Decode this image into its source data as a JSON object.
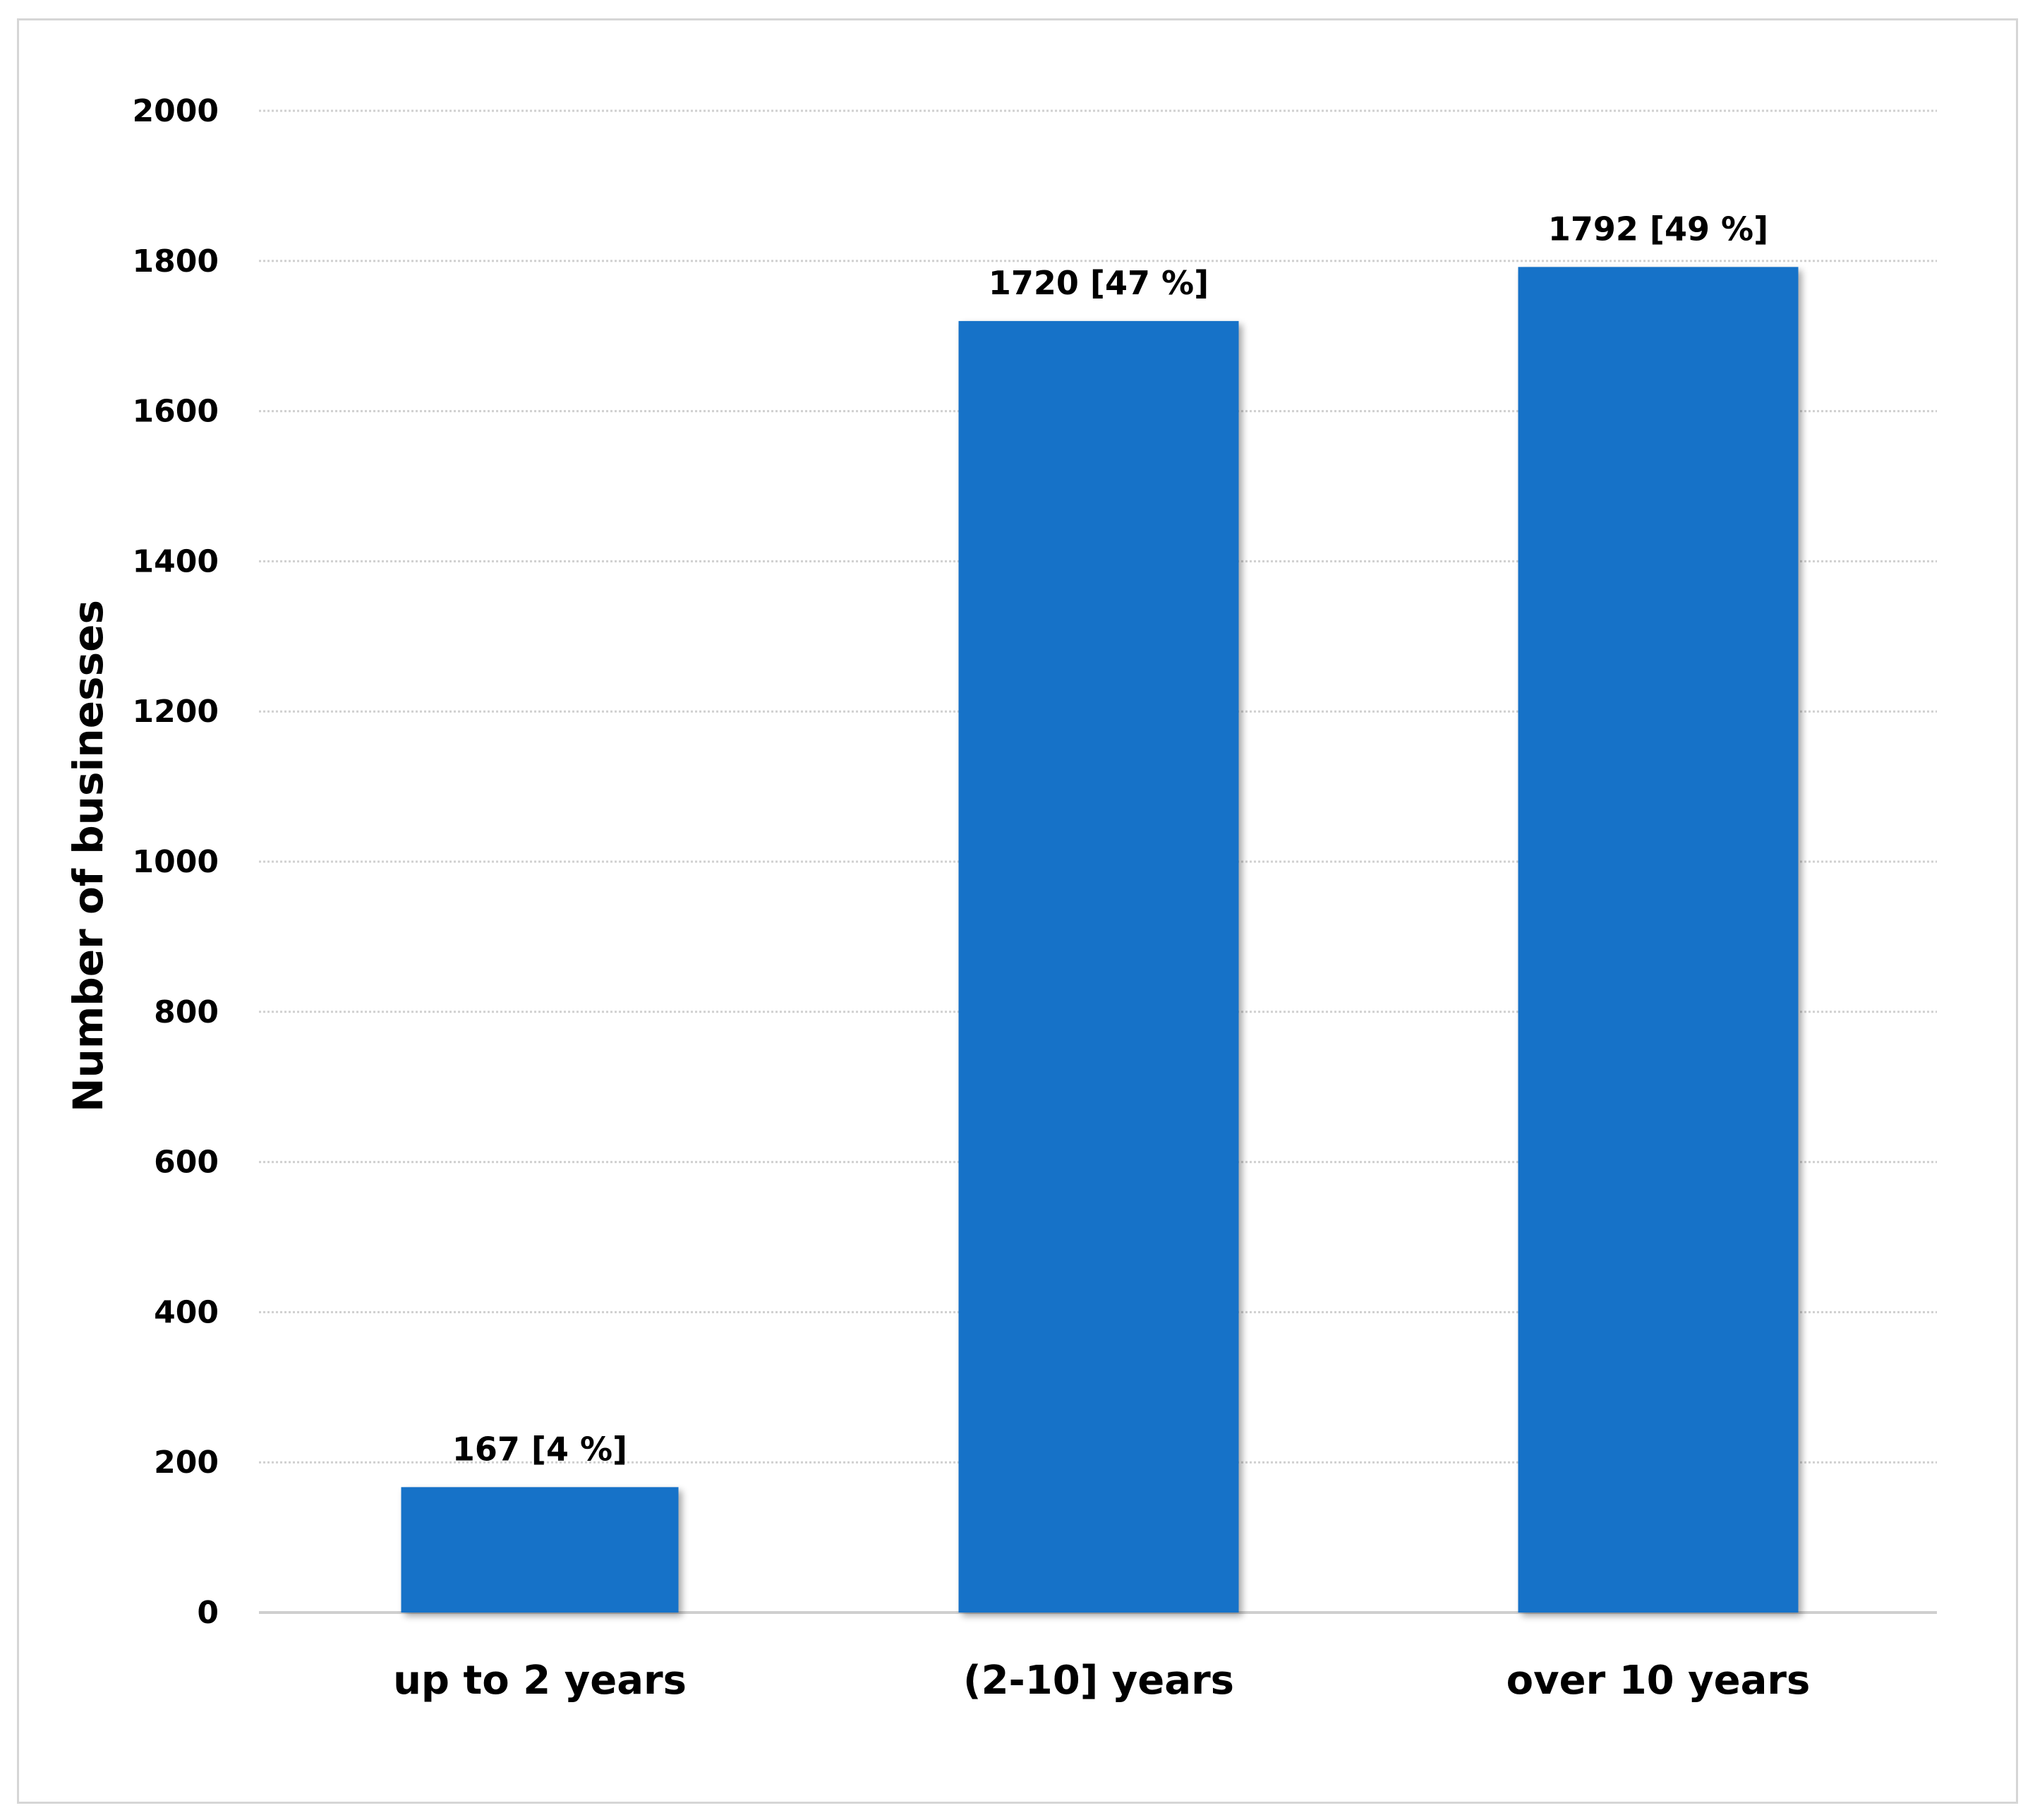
{
  "chart_data": {
    "type": "bar",
    "categories": [
      "up to 2 years",
      "(2-10] years",
      "over 10 years"
    ],
    "values": [
      167,
      1720,
      1792
    ],
    "data_labels": [
      "167 [4 %]",
      "1720 [47 %]",
      "1792 [49 %]"
    ],
    "title": "",
    "xlabel": "",
    "ylabel": "Number of businesses",
    "ylim": [
      0,
      2000
    ],
    "yticks": [
      "0",
      "200",
      "400",
      "600",
      "800",
      "1000",
      "1200",
      "1400",
      "1600",
      "1800",
      "2000"
    ],
    "grid": true,
    "legend": "none",
    "bar_color": "#1672c8"
  }
}
